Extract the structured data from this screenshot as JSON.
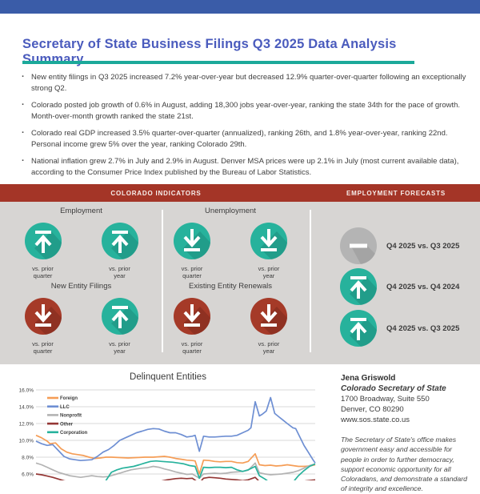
{
  "page": {
    "title": "Secretary of State Business Filings Q3 2025 Data Analysis Summary",
    "accent_teal": "#1ba99a",
    "topbar_blue": "#3a5ca8",
    "title_blue": "#4a5bbd",
    "header_red": "#a43527",
    "panel_gray": "#d7d5d3"
  },
  "bullets": [
    "New entity filings in Q3 2025 increased 7.2% year-over-year but decreased 12.9% quarter-over-quarter following an exceptionally strong Q2.",
    "Colorado posted job growth of 0.6% in August, adding 18,300 jobs year-over-year, ranking the state 34th for the pace of growth. Month-over-month growth ranked the state 21st.",
    "Colorado real GDP increased 3.5% quarter-over-quarter (annualized), ranking 26th, and 1.8% year-over-year, ranking 22nd. Personal income grew 5% over the year, ranking Colorado 29th.",
    "National inflation grew 2.7% in July and 2.9% in August. Denver MSA prices were up 2.1% in July (most current available data), according to the Consumer Price Index published by the Bureau of Labor Statistics."
  ],
  "sections": {
    "indicators_title": "COLORADO INDICATORS",
    "forecasts_title": "EMPLOYMENT FORECASTS"
  },
  "icon_colors": {
    "teal": "#27b29c",
    "teal_dark": "#1d8d7b",
    "red": "#a53a28",
    "red_dark": "#7e2a1d",
    "gray": "#b4b4b4",
    "gray_dark": "#989898"
  },
  "indicators": [
    {
      "title": "Employment",
      "items": [
        {
          "label": "vs. prior\nquarter",
          "direction": "up",
          "color": "teal"
        },
        {
          "label": "vs. prior\nyear",
          "direction": "up",
          "color": "teal"
        }
      ]
    },
    {
      "title": "Unemployment",
      "items": [
        {
          "label": "vs. prior\nquarter",
          "direction": "down",
          "color": "teal"
        },
        {
          "label": "vs. prior\nyear",
          "direction": "down",
          "color": "teal"
        }
      ]
    },
    {
      "title": "New Entity Filings",
      "items": [
        {
          "label": "vs. prior\nquarter",
          "direction": "down",
          "color": "red"
        },
        {
          "label": "vs. prior\nyear",
          "direction": "up",
          "color": "teal"
        }
      ]
    },
    {
      "title": "Existing Entity Renewals",
      "items": [
        {
          "label": "vs. prior\nquarter",
          "direction": "down",
          "color": "red"
        },
        {
          "label": "vs. prior\nyear",
          "direction": "down",
          "color": "red"
        }
      ]
    }
  ],
  "forecasts": [
    {
      "label": "Q4 2025 vs. Q3 2025",
      "direction": "neutral",
      "color": "gray"
    },
    {
      "label": "Q4 2025 vs. Q4 2024",
      "direction": "up",
      "color": "teal"
    },
    {
      "label": "Q4 2025 vs. Q3 2025",
      "direction": "up",
      "color": "teal"
    }
  ],
  "contact": {
    "name": "Jena Griswold",
    "role": "Colorado Secretary of State",
    "address1": "1700 Broadway, Suite 550",
    "address2": "Denver, CO 80290",
    "website": "www.sos.state.co.us",
    "mission": "The Secretary of State's office makes government easy and accessible for people in order to further democracy, support economic opportunity for all Coloradans, and demonstrate a standard of integrity and excellence."
  },
  "chart_data": {
    "type": "line",
    "title": "Delinquent Entities",
    "y_ticks": [
      "16.0%",
      "14.0%",
      "12.0%",
      "10.0%",
      "8.0%",
      "6.0%"
    ],
    "ylim": [
      4,
      16
    ],
    "clipped_bottom": true,
    "grid": true,
    "legend_position": "top-left",
    "series": [
      {
        "name": "Foreign",
        "color": "#f59d56",
        "points": [
          [
            0,
            10.6
          ],
          [
            0.02,
            10.3
          ],
          [
            0.04,
            9.9
          ],
          [
            0.05,
            9.6
          ],
          [
            0.07,
            9.7
          ],
          [
            0.09,
            9.0
          ],
          [
            0.11,
            8.6
          ],
          [
            0.13,
            8.4
          ],
          [
            0.15,
            8.3
          ],
          [
            0.17,
            8.2
          ],
          [
            0.19,
            8.0
          ],
          [
            0.21,
            7.85
          ],
          [
            0.23,
            7.9
          ],
          [
            0.25,
            8.0
          ],
          [
            0.27,
            8.0
          ],
          [
            0.3,
            7.95
          ],
          [
            0.33,
            7.9
          ],
          [
            0.36,
            7.95
          ],
          [
            0.39,
            8.0
          ],
          [
            0.42,
            8.0
          ],
          [
            0.44,
            8.05
          ],
          [
            0.46,
            8.1
          ],
          [
            0.48,
            8.0
          ],
          [
            0.5,
            7.85
          ],
          [
            0.52,
            7.75
          ],
          [
            0.54,
            7.65
          ],
          [
            0.56,
            7.6
          ],
          [
            0.57,
            7.55
          ],
          [
            0.585,
            6.0
          ],
          [
            0.6,
            7.65
          ],
          [
            0.62,
            7.6
          ],
          [
            0.64,
            7.5
          ],
          [
            0.66,
            7.45
          ],
          [
            0.68,
            7.5
          ],
          [
            0.7,
            7.5
          ],
          [
            0.72,
            7.35
          ],
          [
            0.74,
            7.3
          ],
          [
            0.76,
            7.5
          ],
          [
            0.785,
            8.4
          ],
          [
            0.8,
            7.1
          ],
          [
            0.82,
            7.0
          ],
          [
            0.84,
            7.05
          ],
          [
            0.86,
            6.95
          ],
          [
            0.88,
            7.0
          ],
          [
            0.9,
            7.1
          ],
          [
            0.92,
            7.0
          ],
          [
            0.94,
            6.9
          ],
          [
            0.96,
            6.9
          ],
          [
            0.98,
            6.95
          ],
          [
            1,
            7.1
          ]
        ]
      },
      {
        "name": "LLC",
        "color": "#6e8fd3",
        "points": [
          [
            0,
            9.9
          ],
          [
            0.02,
            9.6
          ],
          [
            0.04,
            9.4
          ],
          [
            0.06,
            9.5
          ],
          [
            0.08,
            8.8
          ],
          [
            0.1,
            8.1
          ],
          [
            0.12,
            7.8
          ],
          [
            0.14,
            7.7
          ],
          [
            0.16,
            7.6
          ],
          [
            0.18,
            7.65
          ],
          [
            0.2,
            7.7
          ],
          [
            0.22,
            8.1
          ],
          [
            0.24,
            8.6
          ],
          [
            0.26,
            8.9
          ],
          [
            0.28,
            9.4
          ],
          [
            0.3,
            10.0
          ],
          [
            0.32,
            10.3
          ],
          [
            0.34,
            10.6
          ],
          [
            0.36,
            10.9
          ],
          [
            0.38,
            11.1
          ],
          [
            0.4,
            11.3
          ],
          [
            0.42,
            11.4
          ],
          [
            0.44,
            11.35
          ],
          [
            0.46,
            11.1
          ],
          [
            0.48,
            10.9
          ],
          [
            0.5,
            10.9
          ],
          [
            0.52,
            10.7
          ],
          [
            0.54,
            10.4
          ],
          [
            0.56,
            10.5
          ],
          [
            0.57,
            10.6
          ],
          [
            0.585,
            8.7
          ],
          [
            0.6,
            10.5
          ],
          [
            0.62,
            10.4
          ],
          [
            0.64,
            10.4
          ],
          [
            0.66,
            10.45
          ],
          [
            0.68,
            10.5
          ],
          [
            0.7,
            10.5
          ],
          [
            0.72,
            10.6
          ],
          [
            0.74,
            10.9
          ],
          [
            0.76,
            11.2
          ],
          [
            0.77,
            11.5
          ],
          [
            0.785,
            14.6
          ],
          [
            0.8,
            12.9
          ],
          [
            0.81,
            13.1
          ],
          [
            0.825,
            13.5
          ],
          [
            0.84,
            15.1
          ],
          [
            0.855,
            13.2
          ],
          [
            0.87,
            12.8
          ],
          [
            0.885,
            12.4
          ],
          [
            0.9,
            12.0
          ],
          [
            0.92,
            11.5
          ],
          [
            0.93,
            11.4
          ],
          [
            0.945,
            10.4
          ],
          [
            0.96,
            9.4
          ],
          [
            0.975,
            8.6
          ],
          [
            0.99,
            7.8
          ],
          [
            1,
            7.3
          ]
        ]
      },
      {
        "name": "Nonprofit",
        "color": "#b3b3b3",
        "points": [
          [
            0,
            7.3
          ],
          [
            0.02,
            7.1
          ],
          [
            0.04,
            6.8
          ],
          [
            0.06,
            6.5
          ],
          [
            0.08,
            6.2
          ],
          [
            0.1,
            6.0
          ],
          [
            0.12,
            5.8
          ],
          [
            0.14,
            5.7
          ],
          [
            0.16,
            5.6
          ],
          [
            0.18,
            5.7
          ],
          [
            0.2,
            5.8
          ],
          [
            0.22,
            5.7
          ],
          [
            0.24,
            5.65
          ],
          [
            0.26,
            5.7
          ],
          [
            0.28,
            5.9
          ],
          [
            0.3,
            6.1
          ],
          [
            0.32,
            6.3
          ],
          [
            0.34,
            6.5
          ],
          [
            0.36,
            6.6
          ],
          [
            0.38,
            6.7
          ],
          [
            0.4,
            6.75
          ],
          [
            0.42,
            6.9
          ],
          [
            0.44,
            6.8
          ],
          [
            0.46,
            6.6
          ],
          [
            0.48,
            6.45
          ],
          [
            0.5,
            6.25
          ],
          [
            0.52,
            6.1
          ],
          [
            0.54,
            5.95
          ],
          [
            0.56,
            6.0
          ],
          [
            0.585,
            5.5
          ],
          [
            0.6,
            6.0
          ],
          [
            0.62,
            6.05
          ],
          [
            0.64,
            6.1
          ],
          [
            0.66,
            6.05
          ],
          [
            0.68,
            6.1
          ],
          [
            0.7,
            6.2
          ],
          [
            0.72,
            6.25
          ],
          [
            0.74,
            6.3
          ],
          [
            0.76,
            6.45
          ],
          [
            0.785,
            7.3
          ],
          [
            0.8,
            6.15
          ],
          [
            0.82,
            6.0
          ],
          [
            0.84,
            5.9
          ],
          [
            0.86,
            5.95
          ],
          [
            0.88,
            6.0
          ],
          [
            0.9,
            6.1
          ],
          [
            0.92,
            6.2
          ],
          [
            0.94,
            6.4
          ],
          [
            0.96,
            6.7
          ],
          [
            0.98,
            7.0
          ],
          [
            1,
            7.2
          ]
        ]
      },
      {
        "name": "Other",
        "color": "#943634",
        "points": [
          [
            0,
            6.0
          ],
          [
            0.02,
            5.9
          ],
          [
            0.04,
            5.75
          ],
          [
            0.06,
            5.6
          ],
          [
            0.08,
            5.4
          ],
          [
            0.1,
            5.2
          ],
          [
            0.12,
            5.05
          ],
          [
            0.14,
            4.9
          ],
          [
            0.16,
            4.8
          ],
          [
            0.2,
            4.7
          ],
          [
            0.25,
            4.7
          ],
          [
            0.3,
            4.8
          ],
          [
            0.35,
            4.9
          ],
          [
            0.4,
            5.0
          ],
          [
            0.44,
            5.1
          ],
          [
            0.47,
            5.3
          ],
          [
            0.5,
            5.45
          ],
          [
            0.52,
            5.5
          ],
          [
            0.54,
            5.45
          ],
          [
            0.56,
            5.5
          ],
          [
            0.585,
            4.9
          ],
          [
            0.6,
            5.5
          ],
          [
            0.62,
            5.6
          ],
          [
            0.64,
            5.55
          ],
          [
            0.66,
            5.5
          ],
          [
            0.68,
            5.4
          ],
          [
            0.7,
            5.35
          ],
          [
            0.72,
            5.3
          ],
          [
            0.74,
            5.2
          ],
          [
            0.76,
            5.3
          ],
          [
            0.785,
            5.6
          ],
          [
            0.8,
            5.1
          ],
          [
            0.84,
            5.0
          ],
          [
            0.88,
            5.05
          ],
          [
            0.92,
            5.1
          ],
          [
            0.96,
            5.15
          ],
          [
            1,
            5.3
          ]
        ]
      },
      {
        "name": "Corporation",
        "color": "#27b29c",
        "points": [
          [
            0,
            4.2
          ],
          [
            0.05,
            4.1
          ],
          [
            0.1,
            4.0
          ],
          [
            0.15,
            4.1
          ],
          [
            0.2,
            4.3
          ],
          [
            0.23,
            4.6
          ],
          [
            0.25,
            5.2
          ],
          [
            0.27,
            6.2
          ],
          [
            0.29,
            6.5
          ],
          [
            0.31,
            6.7
          ],
          [
            0.33,
            6.8
          ],
          [
            0.35,
            6.9
          ],
          [
            0.37,
            7.1
          ],
          [
            0.39,
            7.3
          ],
          [
            0.41,
            7.5
          ],
          [
            0.43,
            7.55
          ],
          [
            0.45,
            7.5
          ],
          [
            0.47,
            7.45
          ],
          [
            0.49,
            7.4
          ],
          [
            0.51,
            7.3
          ],
          [
            0.53,
            7.2
          ],
          [
            0.55,
            7.0
          ],
          [
            0.57,
            6.9
          ],
          [
            0.585,
            5.5
          ],
          [
            0.6,
            6.8
          ],
          [
            0.62,
            6.75
          ],
          [
            0.64,
            6.8
          ],
          [
            0.66,
            6.8
          ],
          [
            0.68,
            6.75
          ],
          [
            0.7,
            6.8
          ],
          [
            0.72,
            6.5
          ],
          [
            0.74,
            6.3
          ],
          [
            0.76,
            6.5
          ],
          [
            0.785,
            6.9
          ],
          [
            0.8,
            5.8
          ],
          [
            0.82,
            5.4
          ],
          [
            0.84,
            4.9
          ],
          [
            0.86,
            4.7
          ],
          [
            0.88,
            4.6
          ],
          [
            0.9,
            4.7
          ],
          [
            0.92,
            5.0
          ],
          [
            0.94,
            5.8
          ],
          [
            0.96,
            6.4
          ],
          [
            0.98,
            6.9
          ],
          [
            1,
            7.2
          ]
        ]
      }
    ]
  }
}
